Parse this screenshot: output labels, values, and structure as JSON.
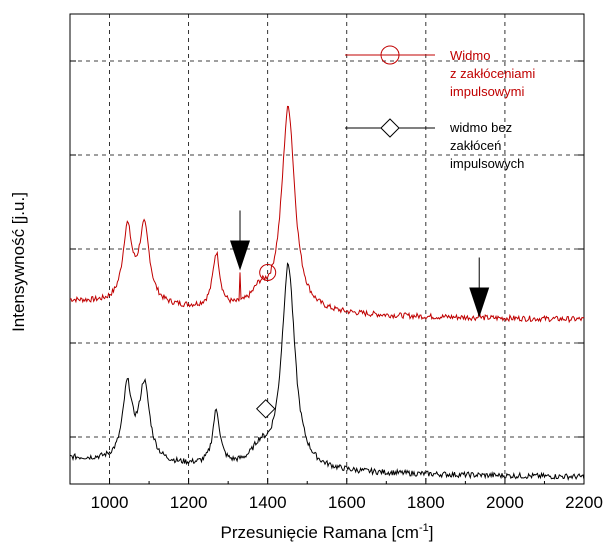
{
  "chart_data": {
    "type": "line",
    "xlabel": "Przesunięcie Ramana [cm",
    "xlabel_sup": "-1",
    "xlabel_end": "]",
    "ylabel": "Intensywność [j.u.]",
    "xlim": [
      900,
      2200
    ],
    "ylim": [
      0,
      10
    ],
    "xticks": [
      1000,
      1200,
      1400,
      1600,
      1800,
      2000,
      2200
    ],
    "grid": true,
    "legend_position": "top-right",
    "series": [
      {
        "name_lines": [
          "Widmo",
          "z zakłóceniami",
          "impulsowymi"
        ],
        "color": "#c00000",
        "marker": "circle",
        "marker_point": [
          1400,
          4.5
        ]
      },
      {
        "name_lines": [
          "widmo bez",
          "zakłóceń",
          "impulsowych"
        ],
        "color": "#000000",
        "marker": "diamond",
        "marker_point": [
          1395,
          1.6
        ]
      }
    ],
    "annotations": [
      {
        "type": "arrow-down",
        "x": 1330,
        "y": 4.5
      },
      {
        "type": "arrow-down",
        "x": 1935,
        "y": 3.5
      }
    ]
  }
}
